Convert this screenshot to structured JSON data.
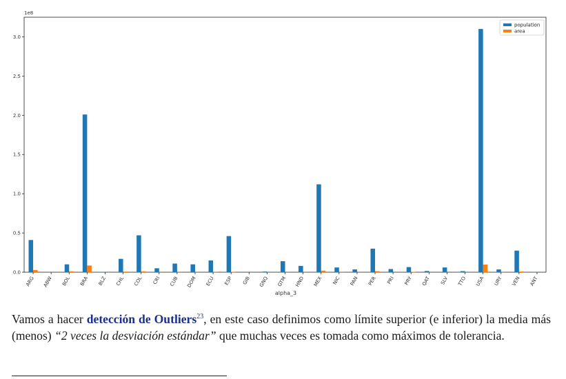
{
  "paragraph": {
    "lead": "Vamos a hacer ",
    "term": "detección de Outliers",
    "footnote_mark": "23",
    "middle": ", en este caso definimos como límite superior (e inferior) la media más (menos) ",
    "quote": "“2 veces la desviación estándar”",
    "tail": " que muchas veces es tomada como máximos de tolerancia."
  },
  "chart_data": {
    "type": "bar",
    "xlabel": "alpha_3",
    "ylabel": "",
    "offset_text": "1e8",
    "y_scale": 100000000,
    "ylim": [
      0,
      3.25
    ],
    "yticks": [
      0.0,
      0.5,
      1.0,
      1.5,
      2.0,
      2.5,
      3.0
    ],
    "ytick_labels": [
      "0.0",
      "0.5",
      "1.0",
      "1.5",
      "2.0",
      "2.5",
      "3.0"
    ],
    "grid": false,
    "legend_position": "top-right",
    "categories": [
      "ARG",
      "ABW",
      "BOL",
      "BRA",
      "BLZ",
      "CHL",
      "COL",
      "CRI",
      "CUB",
      "DOM",
      "ECU",
      "ESP",
      "GIB",
      "GNQ",
      "GTM",
      "HND",
      "MEX",
      "NIC",
      "PAN",
      "PER",
      "PRI",
      "PRY",
      "QAT",
      "SLV",
      "TTO",
      "USA",
      "URY",
      "VEN",
      "ANT"
    ],
    "series": [
      {
        "name": "population",
        "color": "#1f77b4",
        "values": [
          0.41,
          0.001,
          0.1,
          2.01,
          0.003,
          0.17,
          0.47,
          0.05,
          0.11,
          0.1,
          0.15,
          0.46,
          0.0003,
          0.008,
          0.14,
          0.08,
          1.12,
          0.06,
          0.035,
          0.3,
          0.04,
          0.065,
          0.015,
          0.06,
          0.013,
          3.1,
          0.035,
          0.275,
          0.002
        ]
      },
      {
        "name": "area",
        "color": "#ff7f0e",
        "values": [
          0.028,
          0.0,
          0.011,
          0.085,
          0.0002,
          0.0076,
          0.0114,
          0.0005,
          0.0011,
          0.0005,
          0.0028,
          0.005,
          0.0,
          0.0003,
          0.0011,
          0.0011,
          0.0196,
          0.0013,
          0.0008,
          0.0129,
          0.0001,
          0.0041,
          0.0001,
          0.0002,
          0.0001,
          0.0963,
          0.0018,
          0.0091,
          0.0
        ]
      }
    ]
  }
}
